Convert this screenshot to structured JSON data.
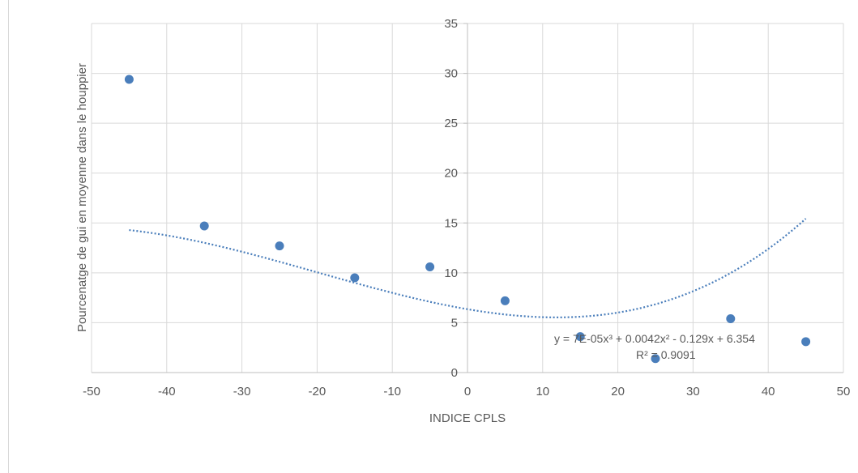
{
  "chart_data": {
    "type": "scatter",
    "title": "",
    "xlabel": "INDICE CPLS",
    "ylabel": "Pourcenatge de gui en moyenne dans le houppier",
    "xlim": [
      -50,
      50
    ],
    "ylim": [
      0,
      35
    ],
    "x_ticks": [
      -50,
      -40,
      -30,
      -20,
      -10,
      0,
      10,
      20,
      30,
      40,
      50
    ],
    "y_ticks": [
      0,
      5,
      10,
      15,
      20,
      25,
      30,
      35
    ],
    "grid": true,
    "legend": "none",
    "points": [
      {
        "x": -45,
        "y": 29.4
      },
      {
        "x": -35,
        "y": 14.7
      },
      {
        "x": -25,
        "y": 12.7
      },
      {
        "x": -15,
        "y": 9.5
      },
      {
        "x": -5,
        "y": 10.6
      },
      {
        "x": 5,
        "y": 7.2
      },
      {
        "x": 15,
        "y": 3.6
      },
      {
        "x": 25,
        "y": 1.4
      },
      {
        "x": 35,
        "y": 5.4
      },
      {
        "x": 45,
        "y": 3.1
      }
    ],
    "trendline": {
      "type": "polynomial",
      "coefficients": {
        "a3": 7e-05,
        "a2": 0.0042,
        "a1": -0.129,
        "a0": 6.354
      },
      "x_range": [
        -45,
        45
      ],
      "equation": "y = 7E-05x³ + 0.0042x² - 0.129x + 6.354",
      "r_squared": "R² = 0.9091"
    },
    "colors": {
      "marker": "#4a7ebb",
      "trendline": "#4a7ebb",
      "grid": "#d9d9d9",
      "axis_text": "#595959"
    }
  }
}
